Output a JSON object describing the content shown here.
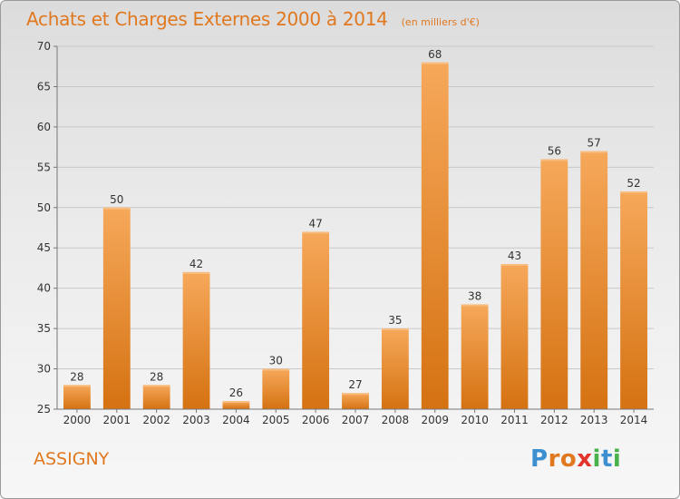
{
  "header": {
    "title": "Achats et Charges Externes 2000 à 2014",
    "subtitle": "(en milliers d'€)"
  },
  "footer": {
    "commune": "ASSIGNY",
    "logo_text": "Proxiti"
  },
  "colors": {
    "accent": "#e07820",
    "bar_top": "#f6a85a",
    "bar_bottom": "#d57212"
  },
  "chart_data": {
    "type": "bar",
    "title": "Achats et Charges Externes 2000 à 2014",
    "subtitle": "(en milliers d'€)",
    "categories": [
      "2000",
      "2001",
      "2002",
      "2003",
      "2004",
      "2005",
      "2006",
      "2007",
      "2008",
      "2009",
      "2010",
      "2011",
      "2012",
      "2013",
      "2014"
    ],
    "values": [
      28,
      50,
      28,
      42,
      26,
      30,
      47,
      27,
      35,
      68,
      38,
      43,
      56,
      57,
      52
    ],
    "ylim": [
      25,
      70
    ],
    "yticks": [
      25,
      30,
      35,
      40,
      45,
      50,
      55,
      60,
      65,
      70
    ],
    "grid": true,
    "legend": "none"
  }
}
